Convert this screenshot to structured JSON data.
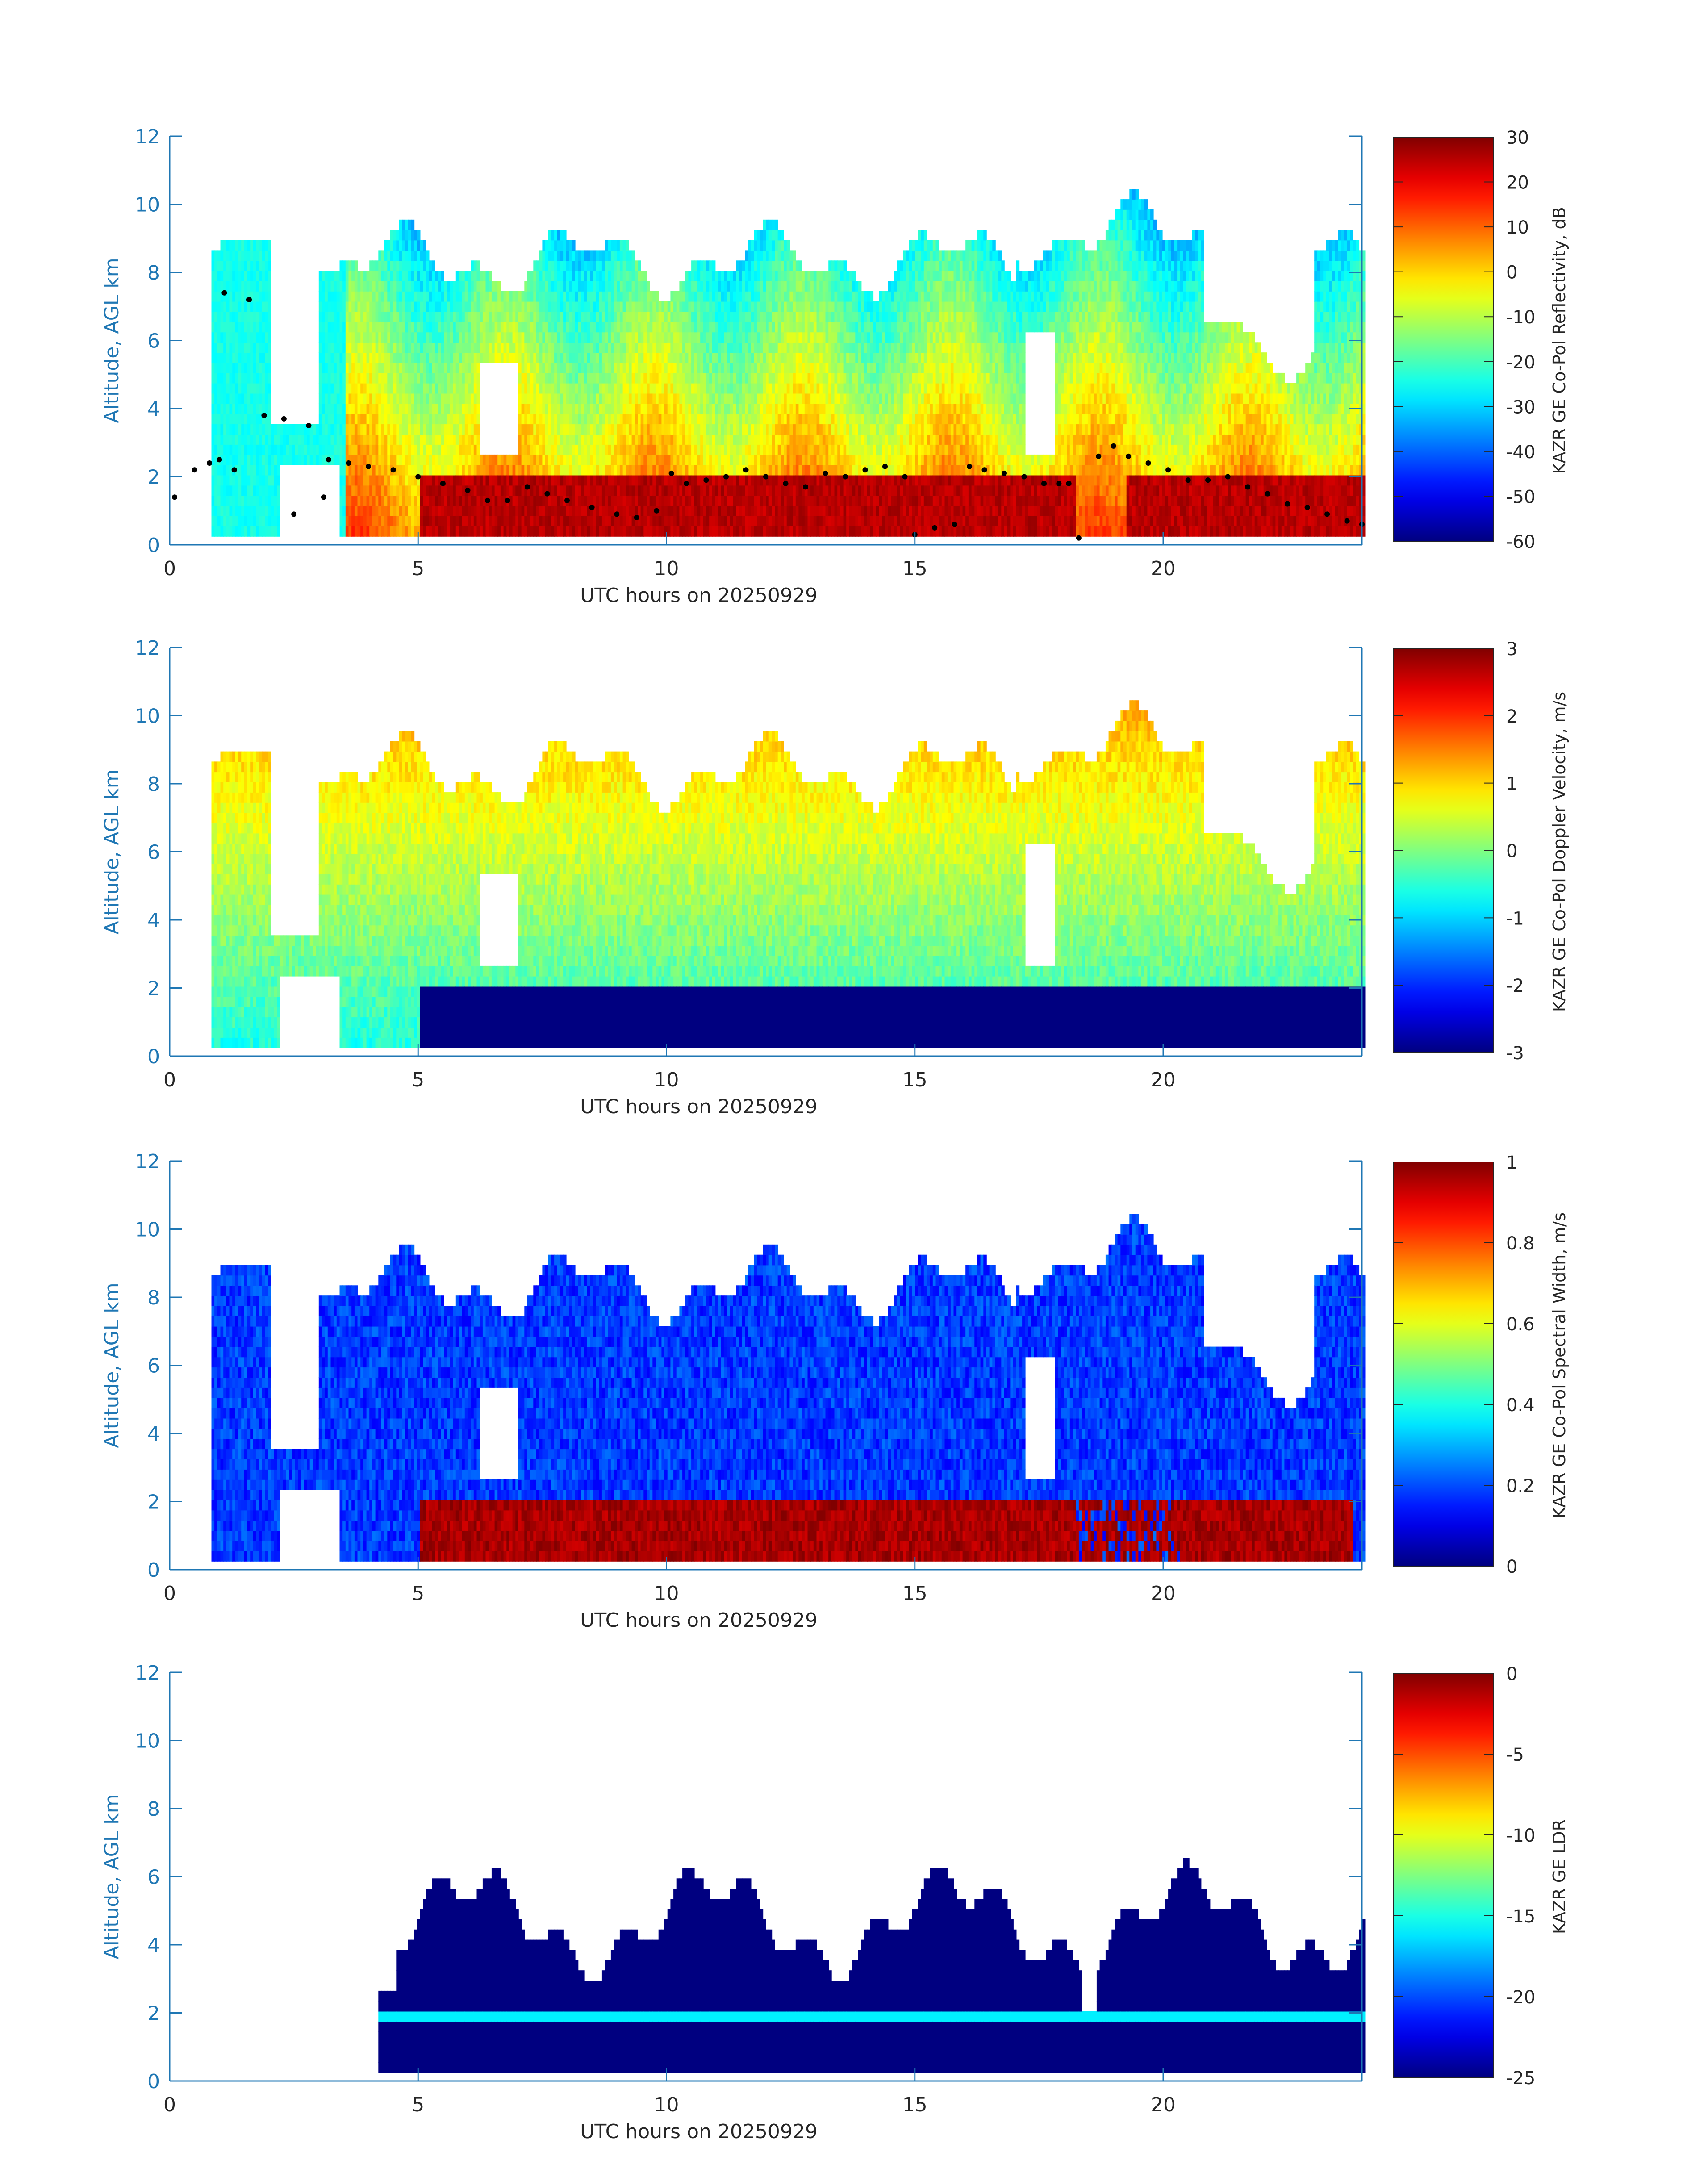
{
  "colors": {
    "axis": "#1f77b4",
    "label_text": "#262626",
    "scatter": "#000000",
    "background": "#ffffff"
  },
  "chart_data": [
    {
      "type": "heatmap",
      "xlabel": "UTC hours on 20250929",
      "ylabel": "Altitude, AGL km",
      "xlim": [
        0,
        24
      ],
      "ylim": [
        0,
        12
      ],
      "xticks": [
        0,
        5,
        10,
        15,
        20
      ],
      "yticks": [
        0,
        2,
        4,
        6,
        8,
        10,
        12
      ],
      "colorbar": {
        "label": "KAZR GE Co-Pol Reflectivity, dB",
        "colormap": "jet",
        "range": [
          -60,
          30
        ],
        "ticks": [
          30,
          20,
          10,
          0,
          -10,
          -20,
          -30,
          -40,
          -50,
          -60
        ]
      },
      "overlay_scatter": {
        "color": "#000000",
        "points": [
          [
            0.1,
            1.4
          ],
          [
            0.5,
            2.2
          ],
          [
            0.8,
            2.4
          ],
          [
            1.0,
            2.5
          ],
          [
            1.3,
            2.2
          ],
          [
            1.1,
            7.4
          ],
          [
            1.6,
            7.2
          ],
          [
            1.9,
            3.8
          ],
          [
            2.3,
            3.7
          ],
          [
            2.8,
            3.5
          ],
          [
            2.5,
            0.9
          ],
          [
            3.1,
            1.4
          ],
          [
            3.2,
            2.5
          ],
          [
            3.6,
            2.4
          ],
          [
            4.0,
            2.3
          ],
          [
            4.5,
            2.2
          ],
          [
            5.0,
            2.0
          ],
          [
            5.5,
            1.8
          ],
          [
            6.0,
            1.6
          ],
          [
            6.4,
            1.3
          ],
          [
            6.8,
            1.3
          ],
          [
            7.2,
            1.7
          ],
          [
            7.6,
            1.5
          ],
          [
            8.0,
            1.3
          ],
          [
            8.5,
            1.1
          ],
          [
            9.0,
            0.9
          ],
          [
            9.4,
            0.8
          ],
          [
            9.8,
            1.0
          ],
          [
            10.1,
            2.1
          ],
          [
            10.4,
            1.8
          ],
          [
            10.8,
            1.9
          ],
          [
            11.2,
            2.0
          ],
          [
            11.6,
            2.2
          ],
          [
            12.0,
            2.0
          ],
          [
            12.4,
            1.8
          ],
          [
            12.8,
            1.7
          ],
          [
            13.2,
            2.1
          ],
          [
            13.6,
            2.0
          ],
          [
            14.0,
            2.2
          ],
          [
            14.4,
            2.3
          ],
          [
            14.8,
            2.0
          ],
          [
            15.0,
            0.3
          ],
          [
            15.4,
            0.5
          ],
          [
            15.8,
            0.6
          ],
          [
            16.1,
            2.3
          ],
          [
            16.4,
            2.2
          ],
          [
            16.8,
            2.1
          ],
          [
            17.2,
            2.0
          ],
          [
            17.6,
            1.8
          ],
          [
            17.9,
            1.8
          ],
          [
            18.1,
            1.8
          ],
          [
            18.3,
            0.2
          ],
          [
            18.7,
            2.6
          ],
          [
            19.0,
            2.9
          ],
          [
            19.3,
            2.6
          ],
          [
            19.7,
            2.4
          ],
          [
            20.1,
            2.2
          ],
          [
            20.5,
            1.9
          ],
          [
            20.9,
            1.9
          ],
          [
            21.3,
            2.0
          ],
          [
            21.7,
            1.7
          ],
          [
            22.1,
            1.5
          ],
          [
            22.5,
            1.2
          ],
          [
            22.9,
            1.1
          ],
          [
            23.3,
            0.9
          ],
          [
            23.7,
            0.7
          ],
          [
            24.0,
            0.6
          ]
        ]
      }
    },
    {
      "type": "heatmap",
      "xlabel": "UTC hours on 20250929",
      "ylabel": "Altitude, AGL km",
      "xlim": [
        0,
        24
      ],
      "ylim": [
        0,
        12
      ],
      "xticks": [
        0,
        5,
        10,
        15,
        20
      ],
      "yticks": [
        0,
        2,
        4,
        6,
        8,
        10,
        12
      ],
      "colorbar": {
        "label": "KAZR GE Co-Pol Doppler Velocity, m/s",
        "colormap": "jet",
        "range": [
          -3,
          3
        ],
        "ticks": [
          3,
          2,
          1,
          0,
          -1,
          -2,
          -3
        ]
      }
    },
    {
      "type": "heatmap",
      "xlabel": "UTC hours on 20250929",
      "ylabel": "Altitude, AGL km",
      "xlim": [
        0,
        24
      ],
      "ylim": [
        0,
        12
      ],
      "xticks": [
        0,
        5,
        10,
        15,
        20
      ],
      "yticks": [
        0,
        2,
        4,
        6,
        8,
        10,
        12
      ],
      "colorbar": {
        "label": "KAZR GE Co-Pol Spectral Width, m/s",
        "colormap": "jet",
        "range": [
          0,
          1
        ],
        "ticks": [
          1,
          0.8,
          0.6,
          0.4,
          0.2,
          0
        ]
      }
    },
    {
      "type": "heatmap",
      "xlabel": "UTC hours on 20250929",
      "ylabel": "Altitude, AGL km",
      "xlim": [
        0,
        24
      ],
      "ylim": [
        0,
        12
      ],
      "xticks": [
        0,
        5,
        10,
        15,
        20
      ],
      "yticks": [
        0,
        2,
        4,
        6,
        8,
        10,
        12
      ],
      "colorbar": {
        "label": "KAZR GE LDR",
        "colormap": "jet",
        "range": [
          -25,
          0
        ],
        "ticks": [
          0,
          -5,
          -10,
          -15,
          -20,
          -25
        ]
      }
    }
  ]
}
